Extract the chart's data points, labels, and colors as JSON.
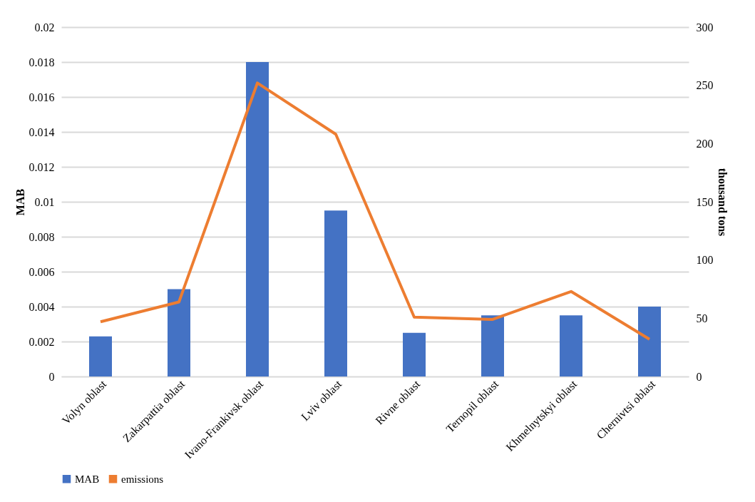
{
  "chart_data": {
    "type": "bar",
    "ylabel": "MAB",
    "y2label": "thousand tons",
    "categories": [
      "Volyn oblast",
      "Zakarpattia oblast",
      "Ivano-Frankivsk oblast",
      "Lviv oblast",
      "Rivne oblast",
      "Ternopil oblast",
      "Khmelnytskyi oblast",
      "Chernivtsi oblast"
    ],
    "series": [
      {
        "name": "MAB",
        "color": "#4472c4",
        "values": [
          0.0023,
          0.005,
          0.018,
          0.0095,
          0.0025,
          0.0035,
          0.0035,
          0.004
        ]
      },
      {
        "name": "emissions",
        "type": "line",
        "axis": "y2",
        "color": "#ed7d31",
        "values": [
          47,
          64,
          252,
          208,
          51,
          49,
          73,
          32
        ]
      }
    ],
    "ylim": [
      0,
      0.02
    ],
    "yticks": [
      0,
      0.002,
      0.004,
      0.006,
      0.008,
      0.01,
      0.012,
      0.014,
      0.016,
      0.018,
      0.02
    ],
    "y2lim": [
      0,
      300
    ],
    "y2ticks": [
      0,
      50,
      100,
      150,
      200,
      250,
      300
    ],
    "grid": "y",
    "legend": "bottom",
    "marker": "none",
    "line_style": "solid"
  }
}
